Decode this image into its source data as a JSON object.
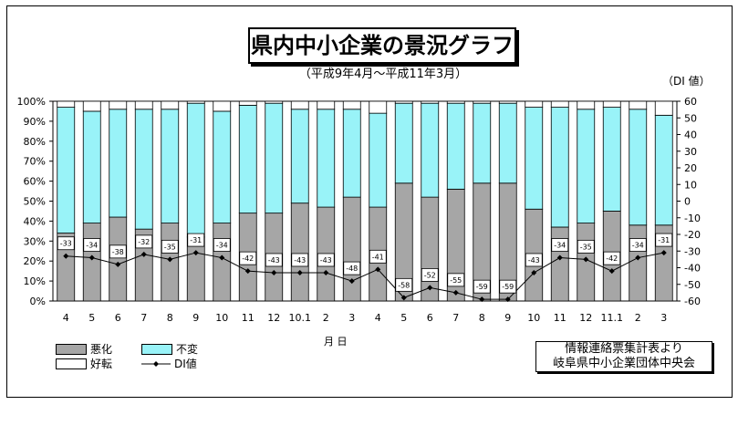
{
  "title": "県内中小企業の景況グラフ",
  "subtitle": "（平成9年4月～平成11年3月）",
  "right_axis_unit": "（DI 値）",
  "x_axis_title": "月 日",
  "legend": {
    "bad": "悪化",
    "same": "不変",
    "good": "好転",
    "di": "DI値"
  },
  "source": {
    "line1": "情報連絡票集計表より",
    "line2": "岐阜県中小企業団体中央会"
  },
  "colors": {
    "bad": "#a6a6a6",
    "same": "#99f3f8",
    "good": "#ffffff",
    "line": "#000000"
  },
  "chart_data": {
    "type": "bar",
    "stacked": true,
    "categories": [
      "4",
      "5",
      "6",
      "7",
      "8",
      "9",
      "10",
      "11",
      "12",
      "10.1",
      "2",
      "3",
      "4",
      "5",
      "6",
      "7",
      "8",
      "9",
      "10",
      "11",
      "12",
      "11.1",
      "2",
      "3"
    ],
    "series": [
      {
        "name": "悪化",
        "values": [
          34,
          39,
          42,
          36,
          39,
          32,
          39,
          44,
          44,
          49,
          47,
          52,
          47,
          59,
          52,
          56,
          59,
          59,
          46,
          37,
          39,
          45,
          38,
          38
        ]
      },
      {
        "name": "不変",
        "values": [
          63,
          56,
          54,
          60,
          57,
          67,
          56,
          54,
          55,
          47,
          49,
          44,
          47,
          40,
          47,
          43,
          40,
          40,
          51,
          60,
          57,
          52,
          58,
          55
        ]
      },
      {
        "name": "好転",
        "values": [
          3,
          5,
          4,
          4,
          4,
          1,
          5,
          2,
          1,
          4,
          4,
          4,
          6,
          1,
          1,
          1,
          1,
          1,
          3,
          3,
          4,
          3,
          4,
          7
        ]
      },
      {
        "name": "DI値",
        "axis": "right",
        "values": [
          -33,
          -34,
          -38,
          -32,
          -35,
          -31,
          -34,
          -42,
          -43,
          -43,
          -43,
          -48,
          -41,
          -58,
          -52,
          -55,
          -59,
          -59,
          -43,
          -34,
          -35,
          -42,
          -34,
          -31
        ]
      }
    ],
    "left_axis": {
      "ticks": [
        "0%",
        "10%",
        "20%",
        "30%",
        "40%",
        "50%",
        "60%",
        "70%",
        "80%",
        "90%",
        "100%"
      ],
      "ylim": [
        0,
        100
      ]
    },
    "right_axis": {
      "ticks": [
        "-60",
        "-50",
        "-40",
        "-30",
        "-20",
        "-10",
        "0",
        "10",
        "20",
        "30",
        "40",
        "50",
        "60"
      ],
      "ylim": [
        -60,
        60
      ]
    },
    "legend_position": "bottom-left"
  }
}
